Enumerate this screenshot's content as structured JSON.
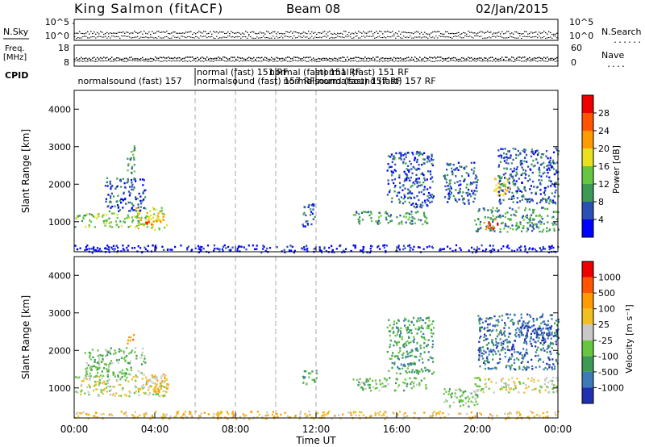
{
  "header": {
    "radar_title": "King Salmon (fitACF)",
    "beam": "Beam 08",
    "date": "02/Jan/2015"
  },
  "top_panels": {
    "nsky_label": "N.Sky",
    "nsearch_label": "N.Search",
    "freq_label_1": "Freq.",
    "freq_label_2": "[MHz]",
    "nave_label": "Nave",
    "cpid_label": "CPID",
    "noise_left_ticks": [
      "10^5",
      "10^0"
    ],
    "noise_right_ticks": [
      "10^5",
      "10^0"
    ],
    "freq_ticks": [
      "18",
      "8"
    ],
    "nave_ticks": [
      "60",
      "0"
    ],
    "cpid_entries": [
      {
        "text": "normalsound (fast) 157",
        "t": 0.1
      },
      {
        "text": "normal (fast) 151 RF",
        "t": 6.0
      },
      {
        "text": "normalsound (fast) 157 RF",
        "t": 6.0
      },
      {
        "text": "normal (fast) 151 RF",
        "t": 9.6
      },
      {
        "text": "normalsound (fast) 157 RF",
        "t": 10.3
      },
      {
        "text": "normal (fast) 151 RF",
        "t": 12.0
      },
      {
        "text": "normalsound (fast) 157 RF",
        "t": 12.0
      }
    ],
    "cpid_change_times": [
      6.0,
      8.0,
      10.0,
      12.0
    ]
  },
  "x_axis": {
    "label": "Time UT",
    "ticks": [
      "00:00",
      "04:00",
      "08:00",
      "12:00",
      "16:00",
      "20:00",
      "00:00"
    ]
  },
  "chart_data": [
    {
      "type": "heatmap",
      "parameter": "Power",
      "ylabel": "Slant Range [km]",
      "ylim": [
        200,
        4500
      ],
      "y_ticks": [
        1000,
        2000,
        3000,
        4000
      ],
      "xlim": [
        0,
        24
      ],
      "colorbar": {
        "label": "Power [dB]",
        "ticks": [
          "4",
          "8",
          "12",
          "16",
          "20",
          "24",
          "28"
        ],
        "colors": [
          "#0000ff",
          "#2a4fb5",
          "#3c9a55",
          "#66c640",
          "#e8e020",
          "#ff9a00",
          "#ff5500",
          "#ee0000"
        ]
      },
      "regions": [
        {
          "t0": 0.0,
          "t1": 3.8,
          "r0": 880,
          "r1": 1250,
          "level": 3
        },
        {
          "t0": 1.5,
          "t1": 3.5,
          "r0": 1300,
          "r1": 2200,
          "level": 1
        },
        {
          "t0": 2.6,
          "t1": 3.0,
          "r0": 2300,
          "r1": 3100,
          "level": 2
        },
        {
          "t0": 3.0,
          "t1": 4.6,
          "r0": 800,
          "r1": 1400,
          "level": 4
        },
        {
          "t0": 3.5,
          "t1": 3.9,
          "r0": 950,
          "r1": 1100,
          "level": 6
        },
        {
          "t0": 11.3,
          "t1": 12.0,
          "r0": 900,
          "r1": 1500,
          "level": 1
        },
        {
          "t0": 13.8,
          "t1": 17.5,
          "r0": 950,
          "r1": 1300,
          "level": 2
        },
        {
          "t0": 15.5,
          "t1": 17.8,
          "r0": 1400,
          "r1": 2900,
          "level": 1
        },
        {
          "t0": 18.3,
          "t1": 20.0,
          "r0": 1500,
          "r1": 2600,
          "level": 1
        },
        {
          "t0": 19.8,
          "t1": 24.0,
          "r0": 750,
          "r1": 1400,
          "level": 2
        },
        {
          "t0": 20.3,
          "t1": 21.0,
          "r0": 800,
          "r1": 1100,
          "level": 6
        },
        {
          "t0": 21.0,
          "t1": 24.0,
          "r0": 1500,
          "r1": 3000,
          "level": 1
        },
        {
          "t0": 20.8,
          "t1": 21.6,
          "r0": 1700,
          "r1": 2300,
          "level": 4
        },
        {
          "t0": 0.0,
          "t1": 24.0,
          "r0": 200,
          "r1": 400,
          "level": 0
        }
      ]
    },
    {
      "type": "heatmap",
      "parameter": "Velocity",
      "ylabel": "Slant Range [km]",
      "ylim": [
        200,
        4500
      ],
      "y_ticks": [
        1000,
        2000,
        3000,
        4000
      ],
      "xlim": [
        0,
        24
      ],
      "colorbar": {
        "label": "Velocity [m s⁻¹]",
        "ticks": [
          "1000",
          "500",
          "100",
          "25",
          "-25",
          "-100",
          "-500",
          "-1000"
        ],
        "colors": [
          "#2030b0",
          "#3c7ab8",
          "#3c9a55",
          "#66c640",
          "#c8c8c8",
          "#f0c020",
          "#ff9a00",
          "#ff5500",
          "#ee0000"
        ]
      },
      "regions": [
        {
          "t0": 0.0,
          "t1": 4.7,
          "r0": 800,
          "r1": 1350,
          "level": 4
        },
        {
          "t0": 0.5,
          "t1": 3.5,
          "r0": 1300,
          "r1": 2100,
          "level": 3
        },
        {
          "t0": 2.6,
          "t1": 3.0,
          "r0": 2200,
          "r1": 2500,
          "level": 6
        },
        {
          "t0": 3.5,
          "t1": 4.6,
          "r0": 900,
          "r1": 1400,
          "level": 5
        },
        {
          "t0": 11.3,
          "t1": 12.0,
          "r0": 1100,
          "r1": 1500,
          "level": 2
        },
        {
          "t0": 13.8,
          "t1": 17.5,
          "r0": 950,
          "r1": 1300,
          "level": 3
        },
        {
          "t0": 15.5,
          "t1": 17.8,
          "r0": 1400,
          "r1": 2900,
          "level": 2
        },
        {
          "t0": 18.3,
          "t1": 20.0,
          "r0": 500,
          "r1": 1000,
          "level": 3
        },
        {
          "t0": 19.8,
          "t1": 24.0,
          "r0": 900,
          "r1": 1300,
          "level": 4
        },
        {
          "t0": 20.0,
          "t1": 24.0,
          "r0": 1500,
          "r1": 3000,
          "level": 1
        },
        {
          "t0": 22.0,
          "t1": 24.0,
          "r0": 2200,
          "r1": 2700,
          "level": 0
        },
        {
          "t0": 0.0,
          "t1": 24.0,
          "r0": 200,
          "r1": 400,
          "level": 5
        }
      ]
    }
  ]
}
